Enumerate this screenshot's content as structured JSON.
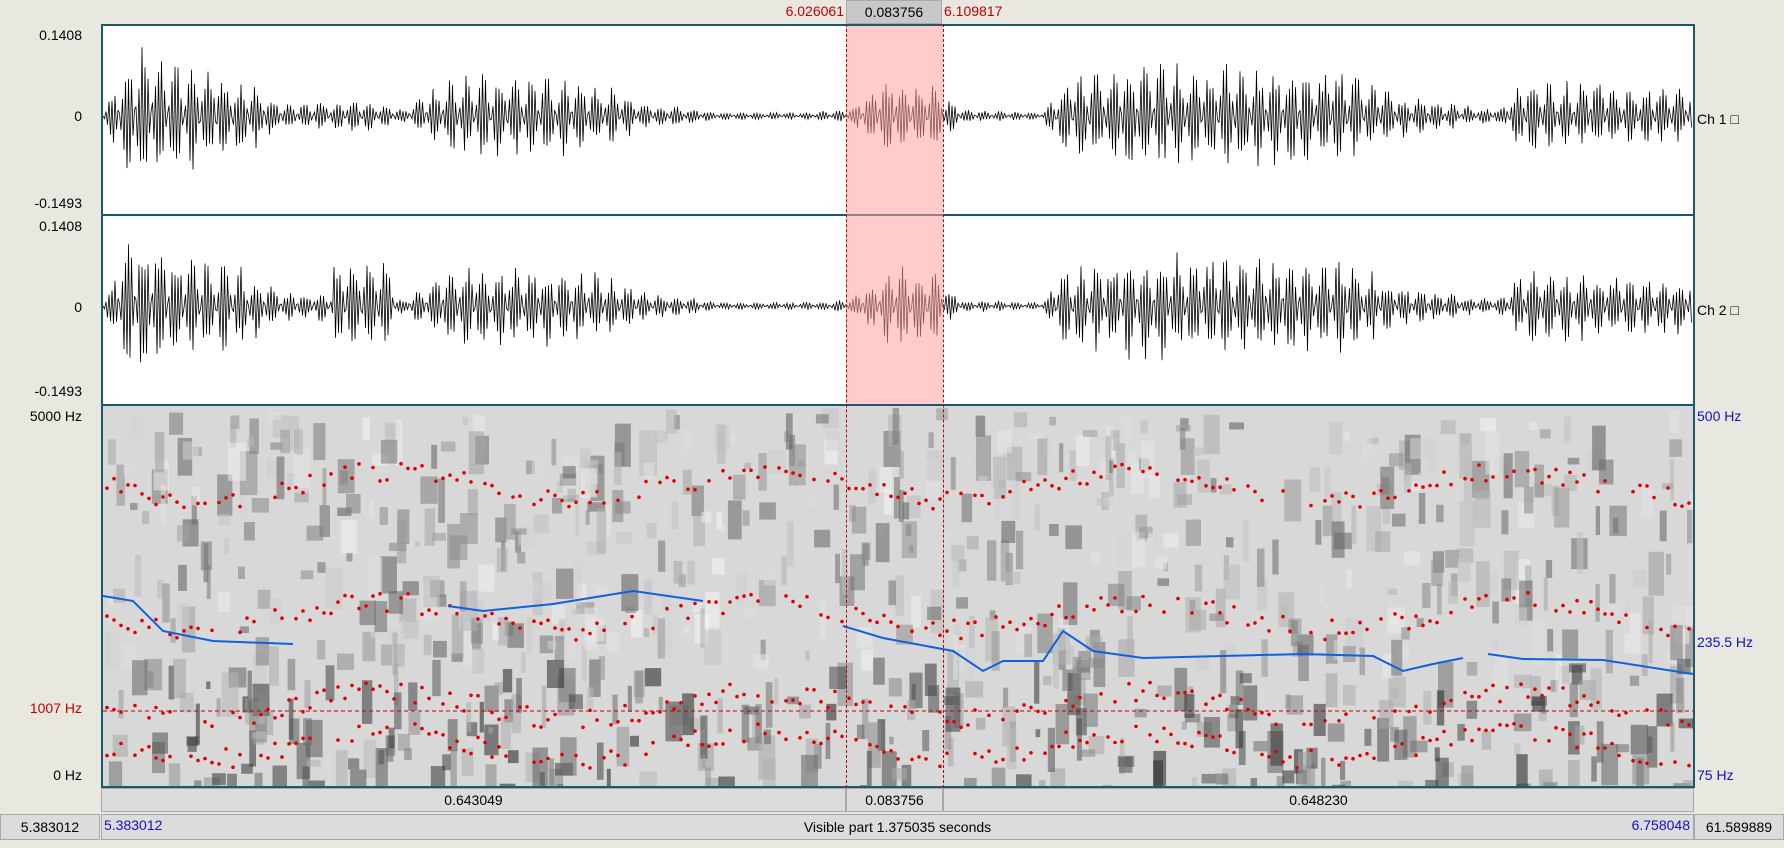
{
  "selection": {
    "start": "6.026061",
    "duration": "0.083756",
    "end": "6.109817"
  },
  "channels": [
    {
      "label": "Ch 1 □",
      "ymax": "0.1408",
      "zero": "0",
      "ymin": "-0.1493"
    },
    {
      "label": "Ch 2 □",
      "ymax": "0.1408",
      "zero": "0",
      "ymin": "-0.1493"
    }
  ],
  "spectrogram": {
    "top_left": "5000 Hz",
    "bottom_left": "0 Hz",
    "cursor_freq": "1007 Hz",
    "pitch_top": "500 Hz",
    "pitch_mid": "235.5 Hz",
    "pitch_bottom": "75 Hz"
  },
  "segments": {
    "left": "0.643049",
    "middle": "0.083756",
    "right": "0.648230"
  },
  "bottom": {
    "total_start": "5.383012",
    "visible_start": "5.383012",
    "visible_label": "Visible part 1.375035 seconds",
    "visible_end": "6.758048",
    "total_end": "61.589889"
  },
  "colors": {
    "panel_border": "#1c5a6a",
    "selection": "#ffb0b0",
    "formant": "#e00000",
    "pitch": "#1060e0",
    "bar_bg": "#dcdcdc"
  }
}
